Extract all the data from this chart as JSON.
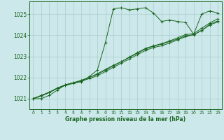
{
  "background_color": "#cce8ea",
  "grid_color": "#aacccc",
  "line_color": "#1a6620",
  "text_color": "#1a6620",
  "xlabel": "Graphe pression niveau de la mer (hPa)",
  "xlim": [
    -0.5,
    23.5
  ],
  "ylim": [
    1020.5,
    1025.6
  ],
  "yticks": [
    1021,
    1022,
    1023,
    1024,
    1025
  ],
  "xticks": [
    0,
    1,
    2,
    3,
    4,
    5,
    6,
    7,
    8,
    9,
    10,
    11,
    12,
    13,
    14,
    15,
    16,
    17,
    18,
    19,
    20,
    21,
    22,
    23
  ],
  "series": [
    [
      1021.0,
      1021.0,
      1021.15,
      1021.4,
      1021.65,
      1021.75,
      1021.8,
      1022.05,
      1022.35,
      1023.65,
      1025.25,
      1025.3,
      1025.2,
      1025.25,
      1025.3,
      1025.05,
      1024.65,
      1024.72,
      1024.65,
      1024.6,
      1024.05,
      1025.0,
      1025.15,
      1025.05
    ],
    [
      1021.0,
      1021.15,
      1021.3,
      1021.5,
      1021.65,
      1021.75,
      1021.85,
      1022.0,
      1022.15,
      1022.35,
      1022.55,
      1022.75,
      1022.95,
      1023.15,
      1023.35,
      1023.48,
      1023.58,
      1023.7,
      1023.82,
      1023.98,
      1024.02,
      1024.22,
      1024.52,
      1024.68
    ],
    [
      1021.0,
      1021.15,
      1021.3,
      1021.5,
      1021.65,
      1021.75,
      1021.87,
      1022.0,
      1022.18,
      1022.38,
      1022.58,
      1022.75,
      1022.97,
      1023.18,
      1023.38,
      1023.5,
      1023.6,
      1023.73,
      1023.88,
      1024.03,
      1024.08,
      1024.33,
      1024.58,
      1024.78
    ],
    [
      1021.0,
      1021.12,
      1021.28,
      1021.48,
      1021.62,
      1021.72,
      1021.82,
      1021.95,
      1022.08,
      1022.28,
      1022.48,
      1022.68,
      1022.88,
      1023.08,
      1023.28,
      1023.42,
      1023.5,
      1023.63,
      1023.78,
      1023.93,
      1024.03,
      1024.23,
      1024.48,
      1024.63
    ]
  ]
}
